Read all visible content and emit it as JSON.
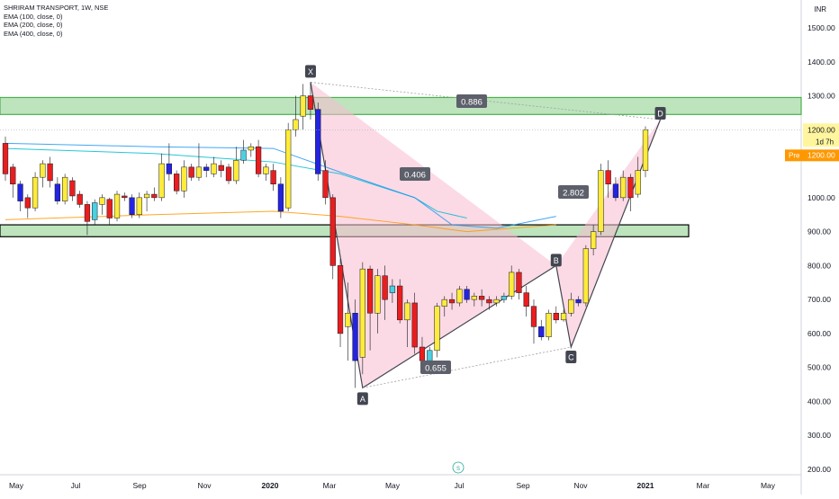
{
  "header": {
    "symbol": "SHRIRAM TRANSPORT, 1W, NSE",
    "indicators": [
      "EMA (100, close, 0)",
      "EMA (200, close, 0)",
      "EMA (400, close, 0)"
    ],
    "currency": "INR"
  },
  "price_labels": {
    "last_price": "1200.00",
    "countdown": "1d 7h",
    "pre_tag": "Pre",
    "pre_price": "1200.00"
  },
  "pattern_points": {
    "X": "X",
    "A": "A",
    "B": "B",
    "C": "C",
    "D": "D"
  },
  "ratios": {
    "xb": "0.886",
    "xa_b": "0.406",
    "ac": "0.655",
    "bd": "2.802"
  },
  "chart_data": {
    "type": "candlestick",
    "title": "SHRIRAM TRANSPORT, 1W, NSE",
    "ylabel": "INR",
    "ylim": [
      190,
      1560
    ],
    "yticks": [
      "200.00",
      "300.00",
      "400.00",
      "500.00",
      "600.00",
      "700.00",
      "800.00",
      "900.00",
      "1000.00",
      "1100.00",
      "1200.00",
      "1300.00",
      "1400.00",
      "1500.00"
    ],
    "xticks": [
      "May",
      "Jul",
      "Sep",
      "Nov",
      "2020",
      "Mar",
      "May",
      "Jul",
      "Sep",
      "Nov",
      "2021",
      "Mar",
      "May"
    ],
    "colors": {
      "up": "#ffeb3b",
      "down": "#e91e1e",
      "up_alt": "#4dd0e1",
      "down_alt": "#2424e0",
      "zone": "#b2dfb2",
      "pattern": "#f8bbd0"
    },
    "zones": [
      {
        "name": "resistance",
        "low": 1245,
        "high": 1295
      },
      {
        "name": "support",
        "low": 885,
        "high": 920
      }
    ],
    "harmonic_pattern": {
      "X": {
        "date": "2020-02-21",
        "price": 1340
      },
      "A": {
        "date": "2020-03-20",
        "price": 440
      },
      "B": {
        "date": "2020-08-28",
        "price": 800
      },
      "C": {
        "date": "2020-09-25",
        "price": 560
      },
      "D": {
        "date": "2020-12-18",
        "price": 1230
      }
    },
    "ema_series": [
      {
        "name": "EMA (100, close, 0)",
        "color": "#00bcd4",
        "points": [
          [
            0,
            1145
          ],
          [
            20,
            1130
          ],
          [
            36,
            1105
          ],
          [
            45,
            1070
          ],
          [
            55,
            1000
          ],
          [
            58,
            960
          ],
          [
            62,
            940
          ]
        ]
      },
      {
        "name": "EMA (200, close, 0)",
        "color": "#2196f3",
        "points": [
          [
            0,
            1160
          ],
          [
            20,
            1150
          ],
          [
            36,
            1145
          ],
          [
            45,
            1075
          ],
          [
            55,
            1000
          ],
          [
            60,
            920
          ],
          [
            66,
            910
          ],
          [
            74,
            945
          ]
        ]
      },
      {
        "name": "EMA (400, close, 0)",
        "color": "#ff9800",
        "points": [
          [
            0,
            935
          ],
          [
            20,
            950
          ],
          [
            36,
            960
          ],
          [
            45,
            945
          ],
          [
            55,
            920
          ],
          [
            62,
            900
          ],
          [
            74,
            920
          ]
        ]
      }
    ],
    "candles": [
      [
        1160,
        1070,
        1180,
        1050
      ],
      [
        1090,
        1040,
        1100,
        1000
      ],
      [
        1040,
        990,
        1050,
        960
      ],
      [
        1000,
        970,
        1010,
        940
      ],
      [
        970,
        1060,
        1075,
        960
      ],
      [
        1060,
        1100,
        1110,
        1030
      ],
      [
        1100,
        1050,
        1120,
        1030
      ],
      [
        1040,
        990,
        1060,
        980
      ],
      [
        990,
        1060,
        1070,
        980
      ],
      [
        1050,
        1005,
        1060,
        990
      ],
      [
        1010,
        980,
        1020,
        970
      ],
      [
        980,
        930,
        990,
        890
      ],
      [
        935,
        985,
        995,
        920
      ],
      [
        980,
        1000,
        1010,
        950
      ],
      [
        995,
        940,
        1000,
        920
      ],
      [
        940,
        1010,
        1020,
        930
      ],
      [
        1005,
        1000,
        1015,
        990
      ],
      [
        1000,
        950,
        1010,
        940
      ],
      [
        950,
        1000,
        1015,
        940
      ],
      [
        1000,
        1010,
        1020,
        960
      ],
      [
        1010,
        1000,
        1030,
        990
      ],
      [
        1000,
        1100,
        1130,
        990
      ],
      [
        1100,
        1070,
        1160,
        1050
      ],
      [
        1070,
        1020,
        1080,
        1010
      ],
      [
        1020,
        1090,
        1110,
        1000
      ],
      [
        1090,
        1060,
        1100,
        1050
      ],
      [
        1060,
        1090,
        1160,
        1050
      ],
      [
        1090,
        1080,
        1100,
        1060
      ],
      [
        1070,
        1100,
        1120,
        1060
      ],
      [
        1095,
        1080,
        1110,
        1060
      ],
      [
        1090,
        1050,
        1100,
        1040
      ],
      [
        1050,
        1110,
        1150,
        1040
      ],
      [
        1110,
        1140,
        1170,
        1100
      ],
      [
        1140,
        1150,
        1160,
        1120
      ],
      [
        1150,
        1070,
        1170,
        1060
      ],
      [
        1070,
        1090,
        1100,
        1050
      ],
      [
        1080,
        1040,
        1100,
        1020
      ],
      [
        1040,
        960,
        1060,
        940
      ],
      [
        970,
        1200,
        1220,
        960
      ],
      [
        1200,
        1230,
        1300,
        1180
      ],
      [
        1240,
        1300,
        1335,
        1200
      ],
      [
        1300,
        1260,
        1340,
        1230
      ],
      [
        1260,
        1070,
        1280,
        1050
      ],
      [
        1080,
        1000,
        1110,
        980
      ],
      [
        1000,
        800,
        1010,
        760
      ],
      [
        800,
        600,
        820,
        560
      ],
      [
        620,
        660,
        750,
        520
      ],
      [
        660,
        520,
        700,
        440
      ],
      [
        530,
        790,
        810,
        480
      ],
      [
        790,
        660,
        800,
        550
      ],
      [
        660,
        770,
        790,
        600
      ],
      [
        770,
        700,
        800,
        640
      ],
      [
        720,
        740,
        760,
        690
      ],
      [
        740,
        640,
        760,
        630
      ],
      [
        640,
        690,
        700,
        560
      ],
      [
        690,
        560,
        720,
        540
      ],
      [
        560,
        520,
        590,
        510
      ],
      [
        520,
        550,
        560,
        515
      ],
      [
        550,
        680,
        690,
        530
      ],
      [
        680,
        700,
        710,
        650
      ],
      [
        700,
        690,
        720,
        670
      ],
      [
        690,
        730,
        740,
        680
      ],
      [
        730,
        700,
        740,
        690
      ],
      [
        700,
        710,
        720,
        680
      ],
      [
        710,
        700,
        730,
        680
      ],
      [
        700,
        690,
        710,
        670
      ],
      [
        690,
        700,
        710,
        680
      ],
      [
        700,
        710,
        720,
        690
      ],
      [
        710,
        780,
        800,
        700
      ],
      [
        780,
        720,
        790,
        700
      ],
      [
        720,
        680,
        740,
        650
      ],
      [
        680,
        620,
        700,
        570
      ],
      [
        620,
        590,
        640,
        580
      ],
      [
        590,
        660,
        670,
        580
      ],
      [
        660,
        640,
        680,
        630
      ],
      [
        640,
        660,
        670,
        635
      ],
      [
        660,
        700,
        720,
        650
      ],
      [
        700,
        690,
        710,
        680
      ],
      [
        690,
        850,
        860,
        680
      ],
      [
        850,
        900,
        920,
        830
      ],
      [
        900,
        1080,
        1100,
        890
      ],
      [
        1080,
        1040,
        1110,
        1000
      ],
      [
        1040,
        1000,
        1060,
        990
      ],
      [
        1000,
        1060,
        1080,
        990
      ],
      [
        1060,
        1000,
        1070,
        960
      ],
      [
        1010,
        1080,
        1120,
        1000
      ],
      [
        1080,
        1200,
        1210,
        1060
      ]
    ]
  },
  "footer": {
    "logo_label": "S"
  }
}
